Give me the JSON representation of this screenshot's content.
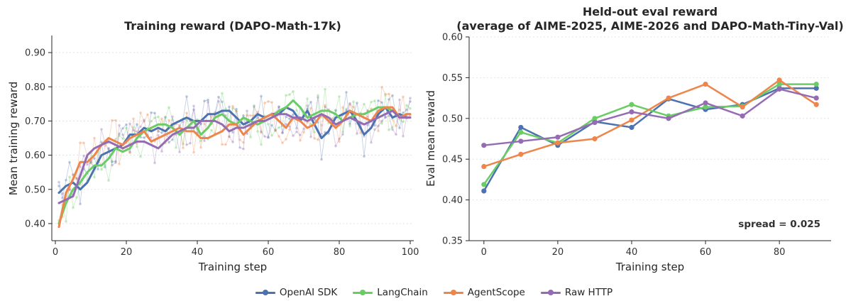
{
  "chart_data": [
    {
      "type": "line",
      "title": "Training reward (DAPO-Math-17k)",
      "xlabel": "Training step",
      "ylabel": "Mean training reward",
      "xlim": [
        -1,
        101
      ],
      "ylim": [
        0.35,
        0.95
      ],
      "xticks": [
        0,
        20,
        40,
        60,
        80,
        100
      ],
      "yticks": [
        0.4,
        0.5,
        0.6,
        0.7,
        0.8,
        0.9
      ],
      "ytick_labels": [
        "0.40",
        "0.50",
        "0.60",
        "0.70",
        "0.80",
        "0.90"
      ],
      "grid": "y",
      "legend": "bottom-center",
      "note": "Thin faint lines with dots are raw per-step rewards; thick lines are smoothed",
      "series": [
        {
          "name": "OpenAI SDK",
          "color": "#4C72B0",
          "smoothed_x": [
            1,
            3,
            5,
            7,
            9,
            11,
            13,
            15,
            17,
            19,
            21,
            23,
            25,
            27,
            29,
            31,
            33,
            35,
            37,
            39,
            41,
            43,
            45,
            47,
            49,
            51,
            53,
            55,
            57,
            59,
            61,
            63,
            65,
            67,
            69,
            71,
            73,
            75,
            77,
            79,
            81,
            83,
            85,
            87,
            89,
            91,
            93,
            95,
            97,
            99,
            100
          ],
          "smoothed_y": [
            0.49,
            0.51,
            0.52,
            0.5,
            0.52,
            0.56,
            0.6,
            0.61,
            0.62,
            0.63,
            0.66,
            0.66,
            0.68,
            0.67,
            0.68,
            0.67,
            0.69,
            0.7,
            0.71,
            0.7,
            0.7,
            0.72,
            0.72,
            0.73,
            0.73,
            0.71,
            0.69,
            0.7,
            0.72,
            0.71,
            0.72,
            0.72,
            0.74,
            0.73,
            0.7,
            0.73,
            0.69,
            0.65,
            0.67,
            0.71,
            0.72,
            0.73,
            0.7,
            0.66,
            0.68,
            0.72,
            0.74,
            0.71,
            0.72,
            0.71,
            0.71
          ]
        },
        {
          "name": "LangChain",
          "color": "#6ACC65",
          "smoothed_x": [
            1,
            3,
            5,
            7,
            9,
            11,
            13,
            15,
            17,
            19,
            21,
            23,
            25,
            27,
            29,
            31,
            33,
            35,
            37,
            39,
            41,
            43,
            45,
            47,
            49,
            51,
            53,
            55,
            57,
            59,
            61,
            63,
            65,
            67,
            69,
            71,
            73,
            75,
            77,
            79,
            81,
            83,
            85,
            87,
            89,
            91,
            93,
            95,
            97,
            99,
            100
          ],
          "smoothed_y": [
            0.4,
            0.46,
            0.5,
            0.52,
            0.55,
            0.57,
            0.57,
            0.59,
            0.62,
            0.61,
            0.62,
            0.65,
            0.67,
            0.68,
            0.69,
            0.69,
            0.68,
            0.66,
            0.68,
            0.7,
            0.66,
            0.68,
            0.71,
            0.72,
            0.7,
            0.69,
            0.71,
            0.7,
            0.69,
            0.7,
            0.71,
            0.73,
            0.74,
            0.76,
            0.74,
            0.71,
            0.72,
            0.73,
            0.73,
            0.72,
            0.7,
            0.71,
            0.72,
            0.72,
            0.73,
            0.74,
            0.74,
            0.73,
            0.71,
            0.72,
            0.72
          ]
        },
        {
          "name": "AgentScope",
          "color": "#EE854A",
          "smoothed_x": [
            1,
            3,
            5,
            7,
            9,
            11,
            13,
            15,
            17,
            19,
            21,
            23,
            25,
            27,
            29,
            31,
            33,
            35,
            37,
            39,
            41,
            43,
            45,
            47,
            49,
            51,
            53,
            55,
            57,
            59,
            61,
            63,
            65,
            67,
            69,
            71,
            73,
            75,
            77,
            79,
            81,
            83,
            85,
            87,
            89,
            91,
            93,
            95,
            97,
            99,
            100
          ],
          "smoothed_y": [
            0.39,
            0.49,
            0.53,
            0.58,
            0.58,
            0.6,
            0.63,
            0.65,
            0.64,
            0.63,
            0.65,
            0.66,
            0.67,
            0.64,
            0.65,
            0.66,
            0.67,
            0.68,
            0.67,
            0.67,
            0.65,
            0.65,
            0.66,
            0.67,
            0.69,
            0.69,
            0.66,
            0.68,
            0.7,
            0.71,
            0.72,
            0.7,
            0.68,
            0.71,
            0.7,
            0.68,
            0.69,
            0.72,
            0.7,
            0.68,
            0.7,
            0.73,
            0.72,
            0.71,
            0.7,
            0.73,
            0.74,
            0.74,
            0.71,
            0.72,
            0.72
          ]
        },
        {
          "name": "Raw HTTP",
          "color": "#956CB4",
          "smoothed_x": [
            1,
            3,
            5,
            7,
            9,
            11,
            13,
            15,
            17,
            19,
            21,
            23,
            25,
            27,
            29,
            31,
            33,
            35,
            37,
            39,
            41,
            43,
            45,
            47,
            49,
            51,
            53,
            55,
            57,
            59,
            61,
            63,
            65,
            67,
            69,
            71,
            73,
            75,
            77,
            79,
            81,
            83,
            85,
            87,
            89,
            91,
            93,
            95,
            97,
            99,
            100
          ],
          "smoothed_y": [
            0.46,
            0.47,
            0.48,
            0.54,
            0.6,
            0.62,
            0.63,
            0.64,
            0.63,
            0.62,
            0.63,
            0.64,
            0.64,
            0.63,
            0.62,
            0.64,
            0.66,
            0.67,
            0.68,
            0.68,
            0.7,
            0.7,
            0.7,
            0.69,
            0.67,
            0.68,
            0.68,
            0.69,
            0.7,
            0.7,
            0.71,
            0.72,
            0.72,
            0.71,
            0.71,
            0.7,
            0.71,
            0.72,
            0.71,
            0.69,
            0.7,
            0.71,
            0.7,
            0.69,
            0.7,
            0.71,
            0.72,
            0.73,
            0.71,
            0.71,
            0.71
          ]
        }
      ]
    },
    {
      "type": "line",
      "title": "Held-out eval reward",
      "subtitle": "(average of AIME-2025, AIME-2026 and DAPO-Math-Tiny-Val)",
      "xlabel": "Training step",
      "ylabel": "Eval mean reward",
      "xlim": [
        -4,
        94
      ],
      "ylim": [
        0.35,
        0.6
      ],
      "xticks": [
        0,
        20,
        40,
        60,
        80
      ],
      "yticks": [
        0.35,
        0.4,
        0.45,
        0.5,
        0.55,
        0.6
      ],
      "ytick_labels": [
        "0.35",
        "0.40",
        "0.45",
        "0.50",
        "0.55",
        "0.60"
      ],
      "grid": "y",
      "annotation": "spread = 0.025",
      "x": [
        0,
        10,
        20,
        30,
        40,
        50,
        60,
        70,
        80,
        90
      ],
      "series": [
        {
          "name": "OpenAI SDK",
          "color": "#4C72B0",
          "values": [
            0.411,
            0.489,
            0.467,
            0.496,
            0.489,
            0.524,
            0.511,
            0.517,
            0.537,
            0.537
          ]
        },
        {
          "name": "LangChain",
          "color": "#6ACC65",
          "values": [
            0.419,
            0.483,
            0.47,
            0.5,
            0.517,
            0.503,
            0.514,
            0.515,
            0.542,
            0.542
          ]
        },
        {
          "name": "AgentScope",
          "color": "#EE854A",
          "values": [
            0.441,
            0.456,
            0.47,
            0.475,
            0.498,
            0.525,
            0.542,
            0.514,
            0.547,
            0.517
          ]
        },
        {
          "name": "Raw HTTP",
          "color": "#956CB4",
          "values": [
            0.467,
            0.472,
            0.477,
            0.495,
            0.508,
            0.5,
            0.519,
            0.503,
            0.536,
            0.525
          ]
        }
      ]
    }
  ],
  "legend": {
    "items": [
      {
        "name": "OpenAI SDK",
        "color": "#4C72B0"
      },
      {
        "name": "LangChain",
        "color": "#6ACC65"
      },
      {
        "name": "AgentScope",
        "color": "#EE854A"
      },
      {
        "name": "Raw HTTP",
        "color": "#956CB4"
      }
    ]
  }
}
